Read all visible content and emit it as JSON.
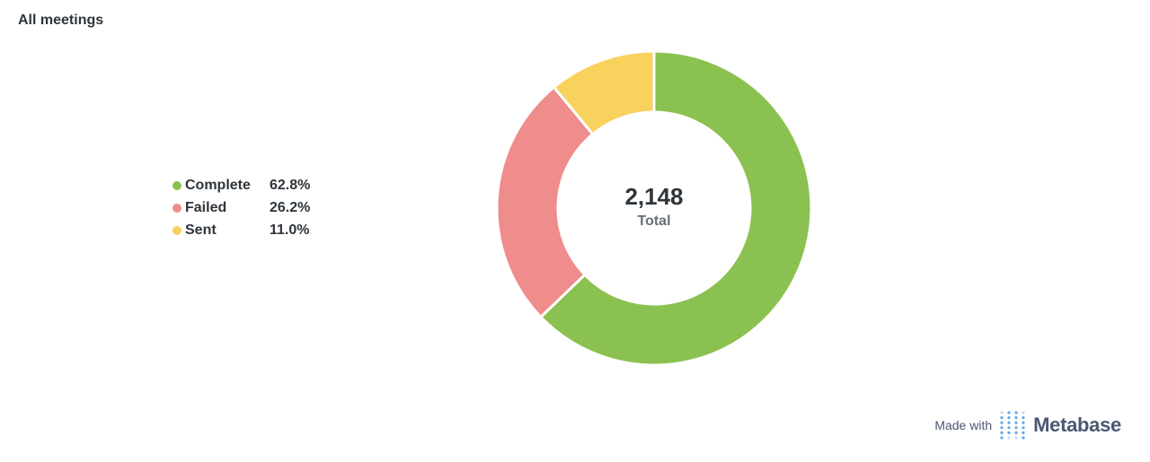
{
  "card": {
    "title": "All meetings"
  },
  "chart_data": {
    "type": "pie",
    "variant": "donut",
    "title": "All meetings",
    "categories": [
      "Complete",
      "Failed",
      "Sent"
    ],
    "values": [
      62.8,
      26.2,
      11.0
    ],
    "value_format": "percent",
    "colors": [
      "#8bc150",
      "#ef8c8c",
      "#f7d35e"
    ],
    "total": {
      "value": "2,148",
      "label": "Total"
    },
    "legend": {
      "placement": "left",
      "items": [
        {
          "label": "Complete",
          "percent": "62.8%",
          "color": "#8bc150"
        },
        {
          "label": "Failed",
          "percent": "26.2%",
          "color": "#ef8c8c"
        },
        {
          "label": "Sent",
          "percent": "11.0%",
          "color": "#f7d35e"
        }
      ]
    }
  },
  "footer": {
    "made_with": "Made with",
    "brand": "Metabase",
    "logo_icon": "metabase-logo-icon",
    "logo_color": "#509ee3"
  }
}
